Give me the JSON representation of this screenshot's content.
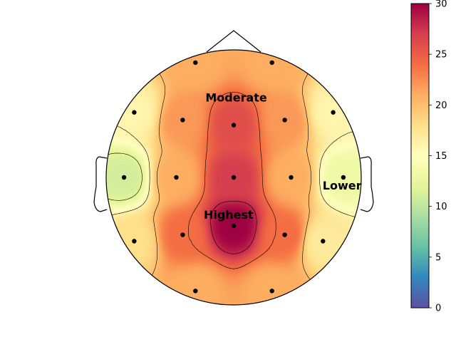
{
  "chart_data": {
    "type": "heatmap",
    "subtype": "scalp topographic map",
    "title": "",
    "colormap": "Spectral_r",
    "colorbar": {
      "vmin": 0,
      "vmax": 30,
      "ticks": [
        "0",
        "5",
        "10",
        "15",
        "20",
        "25",
        "30"
      ],
      "stops": [
        "#5e4fa2",
        "#3288bd",
        "#66c2a5",
        "#abdda4",
        "#e6f598",
        "#ffffbf",
        "#fee08b",
        "#fdae61",
        "#f46d43",
        "#d53e4f",
        "#9e0142"
      ]
    },
    "sensors": [
      {
        "x": -0.3,
        "y": 0.9,
        "value": 21
      },
      {
        "x": 0.3,
        "y": 0.9,
        "value": 21
      },
      {
        "x": -0.78,
        "y": 0.51,
        "value": 16
      },
      {
        "x": -0.4,
        "y": 0.45,
        "value": 22
      },
      {
        "x": 0.0,
        "y": 0.41,
        "value": 26
      },
      {
        "x": 0.4,
        "y": 0.45,
        "value": 22
      },
      {
        "x": 0.78,
        "y": 0.51,
        "value": 16
      },
      {
        "x": -0.86,
        "y": 0.0,
        "value": 11
      },
      {
        "x": -0.45,
        "y": 0.0,
        "value": 21
      },
      {
        "x": 0.0,
        "y": 0.0,
        "value": 27
      },
      {
        "x": 0.45,
        "y": 0.0,
        "value": 21
      },
      {
        "x": 0.86,
        "y": 0.0,
        "value": 13
      },
      {
        "x": -0.78,
        "y": -0.5,
        "value": 18
      },
      {
        "x": -0.4,
        "y": -0.45,
        "value": 24
      },
      {
        "x": 0.0,
        "y": -0.38,
        "value": 30
      },
      {
        "x": 0.4,
        "y": -0.45,
        "value": 24
      },
      {
        "x": 0.7,
        "y": -0.5,
        "value": 17
      },
      {
        "x": -0.3,
        "y": -0.89,
        "value": 21
      },
      {
        "x": 0.3,
        "y": -0.89,
        "value": 21
      }
    ],
    "annotations": [
      {
        "text": "Moderate",
        "x": 0.02,
        "y": 0.62
      },
      {
        "text": "Lower",
        "x": 0.85,
        "y": -0.07
      },
      {
        "text": "Highest",
        "x": -0.04,
        "y": -0.3
      }
    ],
    "contour_levels": [
      12,
      16,
      20,
      24,
      28
    ]
  }
}
